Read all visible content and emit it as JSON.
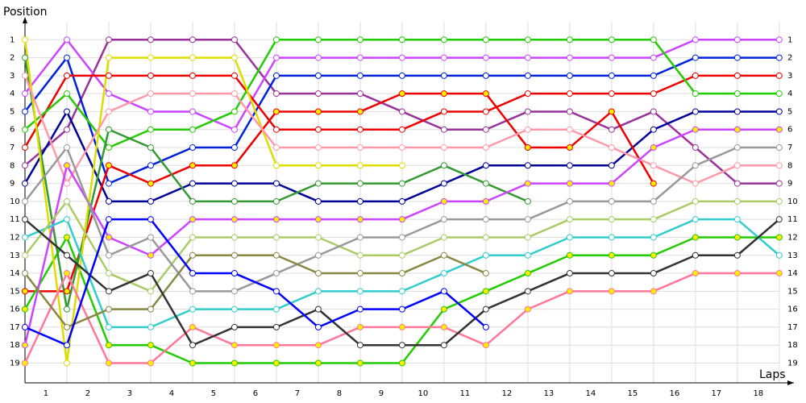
{
  "chart_data": {
    "type": "line",
    "y_axis_label": "Position",
    "x_axis_label": "Laps",
    "x": [
      0,
      1,
      2,
      3,
      4,
      5,
      6,
      7,
      8,
      9,
      10,
      11,
      12,
      13,
      14,
      15,
      16,
      17,
      18
    ],
    "xlim": [
      0,
      18.35
    ],
    "xticks": [
      {
        "value": 0.5,
        "label": "1"
      },
      {
        "value": 1.5,
        "label": "2"
      },
      {
        "value": 2.5,
        "label": "3"
      },
      {
        "value": 3.5,
        "label": "4"
      },
      {
        "value": 4.5,
        "label": "5"
      },
      {
        "value": 5.5,
        "label": "6"
      },
      {
        "value": 6.5,
        "label": "7"
      },
      {
        "value": 7.5,
        "label": "8"
      },
      {
        "value": 8.5,
        "label": "9"
      },
      {
        "value": 9.5,
        "label": "10"
      },
      {
        "value": 10.5,
        "label": "11"
      },
      {
        "value": 11.5,
        "label": "12"
      },
      {
        "value": 12.5,
        "label": "13"
      },
      {
        "value": 13.5,
        "label": "14"
      },
      {
        "value": 14.5,
        "label": "15"
      },
      {
        "value": 15.5,
        "label": "16"
      },
      {
        "value": 16.5,
        "label": "17"
      },
      {
        "value": 17.5,
        "label": "18"
      }
    ],
    "ylim": [
      20.1,
      0
    ],
    "yticks": [
      1,
      2,
      3,
      4,
      5,
      6,
      7,
      8,
      9,
      10,
      11,
      12,
      13,
      14,
      15,
      16,
      17,
      18,
      19
    ],
    "grid": true,
    "series": [
      {
        "color": "#993399",
        "marker": "#ffffff",
        "values": [
          8,
          6,
          1,
          1,
          1,
          1,
          4,
          4,
          4,
          5,
          6,
          6,
          5,
          5,
          6,
          5,
          7,
          9,
          9
        ]
      },
      {
        "color": "#cc44ff",
        "marker": "#ffffff",
        "values": [
          4,
          1,
          4,
          5,
          5,
          6,
          2,
          2,
          2,
          2,
          2,
          2,
          2,
          2,
          2,
          2,
          1,
          1,
          1
        ]
      },
      {
        "color": "#0022dd",
        "marker": "#ffffff",
        "values": [
          5,
          2,
          9,
          8,
          7,
          7,
          3,
          3,
          3,
          3,
          3,
          3,
          3,
          3,
          3,
          3,
          2,
          2,
          2
        ]
      },
      {
        "color": "#000099",
        "marker": "#ffffff",
        "values": [
          9,
          5,
          10,
          10,
          9,
          9,
          9,
          10,
          10,
          10,
          9,
          8,
          8,
          8,
          8,
          6,
          5,
          5,
          5
        ]
      },
      {
        "color": "#ee0000",
        "marker": "#ffffff",
        "values": [
          7,
          3,
          3,
          3,
          3,
          3,
          6,
          6,
          6,
          6,
          5,
          5,
          4,
          4,
          4,
          4,
          3,
          3,
          3
        ]
      },
      {
        "color": "#ee0000",
        "marker": "#ffee00",
        "values": [
          15,
          15,
          8,
          9,
          8,
          8,
          5,
          5,
          5,
          4,
          4,
          4,
          7,
          7,
          5,
          9,
          null,
          null,
          null
        ]
      },
      {
        "color": "#22cc00",
        "marker": "#ffffff",
        "values": [
          6,
          4,
          7,
          6,
          6,
          5,
          1,
          1,
          1,
          1,
          1,
          1,
          1,
          1,
          1,
          1,
          4,
          4,
          4
        ]
      },
      {
        "color": "#22cc00",
        "marker": "#ffee00",
        "values": [
          16,
          12,
          18,
          18,
          19,
          19,
          19,
          19,
          19,
          19,
          16,
          15,
          14,
          13,
          13,
          13,
          12,
          12,
          12
        ]
      },
      {
        "color": "#339933",
        "marker": "#ffffff",
        "values": [
          2,
          16,
          6,
          7,
          10,
          10,
          10,
          9,
          9,
          9,
          8,
          9,
          10,
          null,
          null,
          null,
          null,
          null,
          null
        ]
      },
      {
        "color": "#dddd00",
        "marker": "#ffffff",
        "values": [
          1,
          19,
          2,
          2,
          2,
          2,
          8,
          8,
          8,
          8,
          null,
          null,
          null,
          null,
          null,
          null,
          null,
          null,
          null
        ]
      },
      {
        "color": "#ff99aa",
        "marker": "#ffffff",
        "values": [
          3,
          9,
          5,
          4,
          4,
          4,
          7,
          7,
          7,
          7,
          7,
          7,
          6,
          6,
          7,
          8,
          9,
          8,
          8
        ]
      },
      {
        "color": "#ff7799",
        "marker": "#ffee00",
        "values": [
          19,
          14,
          19,
          19,
          17,
          18,
          18,
          18,
          17,
          17,
          17,
          18,
          16,
          15,
          15,
          15,
          14,
          14,
          14
        ]
      },
      {
        "color": "#cc44ff",
        "marker": "#ffee00",
        "values": [
          18,
          8,
          12,
          13,
          11,
          11,
          11,
          11,
          11,
          11,
          10,
          10,
          9,
          9,
          9,
          7,
          6,
          6,
          6
        ]
      },
      {
        "color": "#33cccc",
        "marker": "#ffffff",
        "values": [
          12,
          11,
          17,
          17,
          16,
          16,
          16,
          15,
          15,
          15,
          14,
          13,
          13,
          12,
          12,
          12,
          11,
          11,
          13
        ]
      },
      {
        "color": "#aacc66",
        "marker": "#ffffff",
        "values": [
          13,
          10,
          14,
          15,
          12,
          12,
          12,
          12,
          13,
          13,
          12,
          12,
          12,
          11,
          11,
          11,
          10,
          10,
          10
        ]
      },
      {
        "color": "#999999",
        "marker": "#ffffff",
        "values": [
          10,
          7,
          13,
          12,
          15,
          15,
          14,
          13,
          12,
          12,
          11,
          11,
          11,
          10,
          10,
          10,
          8,
          7,
          7
        ]
      },
      {
        "color": "#888844",
        "marker": "#ffffff",
        "values": [
          14,
          17,
          16,
          16,
          13,
          13,
          13,
          14,
          14,
          14,
          13,
          14,
          null,
          null,
          null,
          null,
          null,
          null,
          null
        ]
      },
      {
        "color": "#333333",
        "marker": "#ffffff",
        "values": [
          11,
          13,
          15,
          14,
          18,
          17,
          17,
          16,
          18,
          18,
          18,
          16,
          15,
          14,
          14,
          14,
          13,
          13,
          11
        ]
      },
      {
        "color": "#0000ff",
        "marker": "#ffffff",
        "values": [
          17,
          18,
          11,
          11,
          14,
          14,
          15,
          17,
          16,
          16,
          15,
          17,
          null,
          null,
          null,
          null,
          null,
          null,
          null
        ]
      }
    ]
  }
}
